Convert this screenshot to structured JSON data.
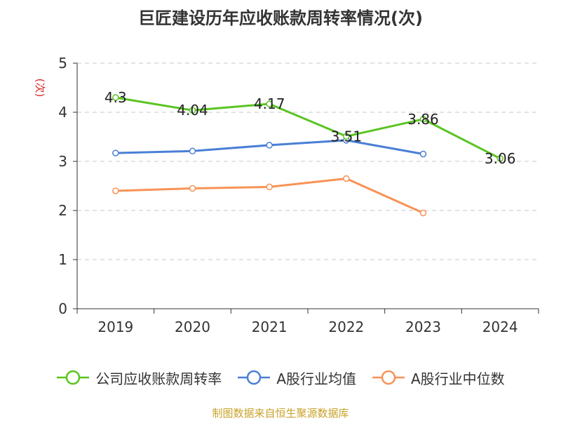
{
  "chart_data": {
    "type": "line",
    "title": "巨匠建设历年应收账款周转率情况(次)",
    "ylabel": "(次)",
    "categories": [
      "2019",
      "2020",
      "2021",
      "2022",
      "2023",
      "2024"
    ],
    "ylim": [
      0,
      5
    ],
    "yticks": [
      0,
      1,
      2,
      3,
      4,
      5
    ],
    "grid": true,
    "legend_position": "bottom",
    "series": [
      {
        "name": "公司应收账款周转率",
        "values": [
          4.3,
          4.04,
          4.17,
          3.51,
          3.86,
          3.06
        ],
        "labels": [
          "4.3",
          "4.04",
          "4.17",
          "3.51",
          "3.86",
          "3.06"
        ],
        "color": "#5ac421"
      },
      {
        "name": "A股行业均值",
        "values": [
          3.17,
          3.21,
          3.33,
          3.43,
          3.15,
          null
        ],
        "color": "#4a7fd6"
      },
      {
        "name": "A股行业中位数",
        "values": [
          2.4,
          2.45,
          2.48,
          2.65,
          1.95,
          null
        ],
        "color": "#f79357"
      }
    ]
  },
  "source": "制图数据来自恒生聚源数据库"
}
